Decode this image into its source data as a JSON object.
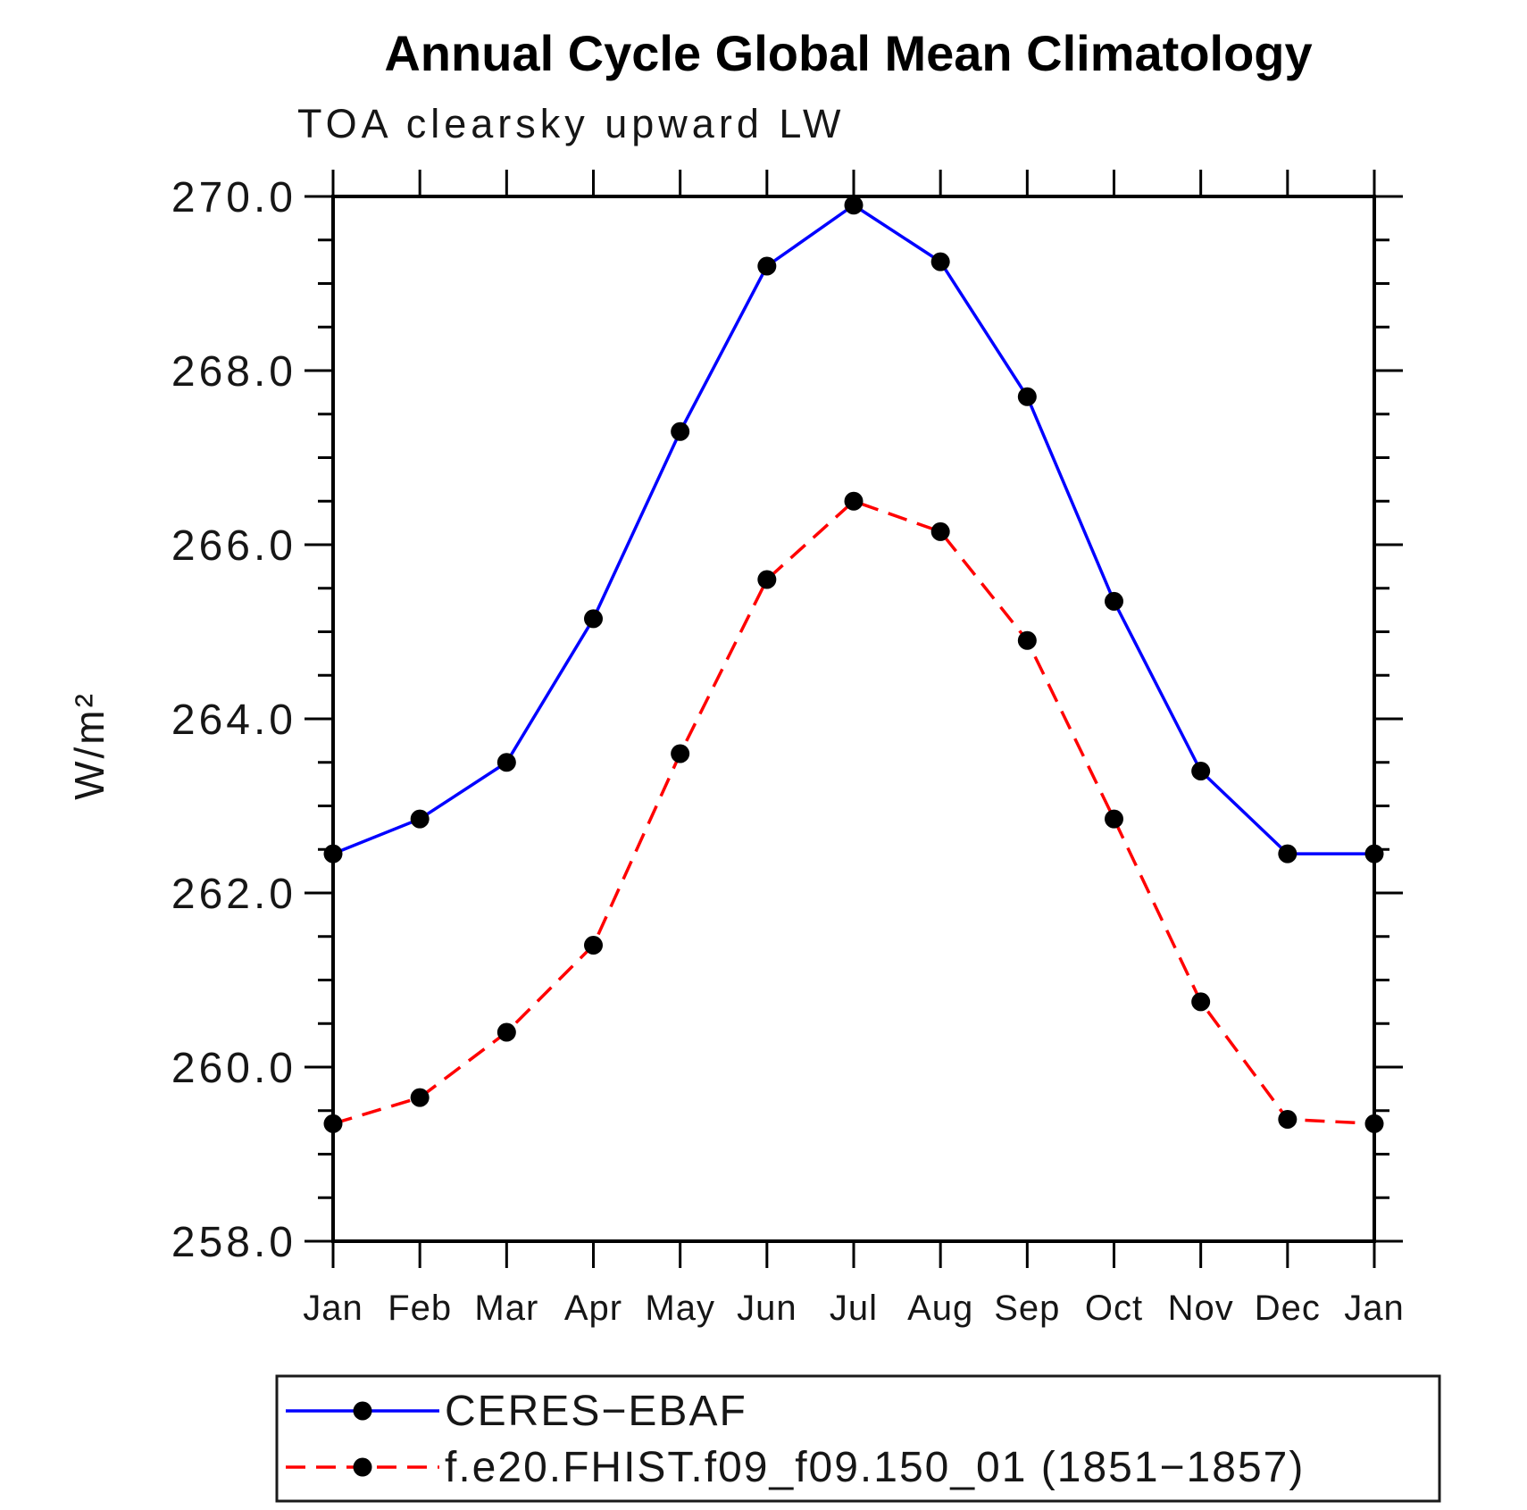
{
  "figure": {
    "background": "#ffffff",
    "frame_color": "#000000",
    "tick_color": "#000000"
  },
  "chart_data": {
    "type": "line",
    "title": "Annual Cycle Global Mean Climatology",
    "subtitle": "TOA clearsky upward LW",
    "ylabel": "W/m²",
    "xlabel": "",
    "categories": [
      "Jan",
      "Feb",
      "Mar",
      "Apr",
      "May",
      "Jun",
      "Jul",
      "Aug",
      "Sep",
      "Oct",
      "Nov",
      "Dec",
      "Jan"
    ],
    "series": [
      {
        "name": "CERES−EBAF",
        "line_style": "solid",
        "color": "#0000ff",
        "marker_color": "#000000",
        "values": [
          262.45,
          262.85,
          263.5,
          265.15,
          267.3,
          269.2,
          269.9,
          269.25,
          267.7,
          265.35,
          263.4,
          262.45,
          262.45
        ]
      },
      {
        "name": "f.e20.FHIST.f09_f09.150_01 (1851−1857)",
        "line_style": "dashed",
        "color": "#ff0000",
        "marker_color": "#000000",
        "values": [
          259.35,
          259.65,
          260.4,
          261.4,
          263.6,
          265.6,
          266.5,
          266.15,
          264.9,
          262.85,
          260.75,
          259.4,
          259.35
        ]
      }
    ],
    "ylim": [
      258.0,
      270.0
    ],
    "ytick_step": 2.0,
    "yminor_step": 0.5,
    "ytick_labels": [
      "258.0",
      "260.0",
      "262.0",
      "264.0",
      "266.0",
      "268.0",
      "270.0"
    ],
    "grid": false,
    "legend_position": "bottom"
  }
}
